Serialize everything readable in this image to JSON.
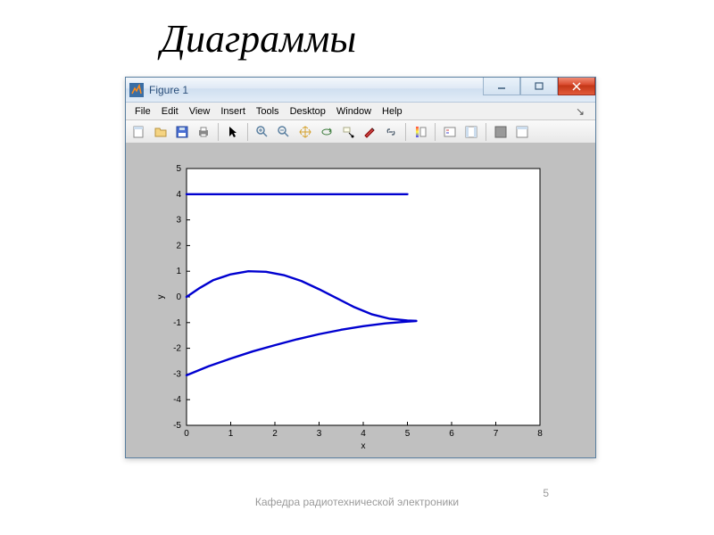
{
  "slide": {
    "title": "Диаграммы",
    "footer": "Кафедра радиотехнической электроники",
    "page_number": "5"
  },
  "window": {
    "title": "Figure 1",
    "menu": [
      "File",
      "Edit",
      "View",
      "Insert",
      "Tools",
      "Desktop",
      "Window",
      "Help"
    ],
    "toolbar_icons": [
      "new-figure",
      "open",
      "save",
      "print",
      "sep",
      "pointer",
      "sep",
      "zoom-in",
      "zoom-out",
      "pan",
      "rotate3d",
      "data-cursor",
      "brush",
      "link",
      "sep",
      "colorbar",
      "sep",
      "legend",
      "insert-colorbar",
      "sep",
      "hide-tools",
      "dock"
    ]
  },
  "chart": {
    "type": "line",
    "background_color": "#ffffff",
    "figure_background": "#c0c0c0",
    "line_color": "#0000d0",
    "line_width": 2.4,
    "xlabel": "x",
    "ylabel": "y",
    "label_fontsize": 10,
    "xlim": [
      0,
      8
    ],
    "ylim": [
      -5,
      5
    ],
    "xtick_step": 1,
    "ytick_step": 1,
    "lines": [
      {
        "name": "top-horizontal",
        "points": [
          [
            0.0,
            4.0
          ],
          [
            5.0,
            4.0
          ]
        ]
      },
      {
        "name": "upper-curve",
        "points": [
          [
            0.0,
            0.0
          ],
          [
            0.3,
            0.35
          ],
          [
            0.6,
            0.65
          ],
          [
            1.0,
            0.88
          ],
          [
            1.4,
            1.0
          ],
          [
            1.8,
            0.98
          ],
          [
            2.2,
            0.85
          ],
          [
            2.6,
            0.62
          ],
          [
            3.0,
            0.3
          ],
          [
            3.4,
            -0.05
          ],
          [
            3.8,
            -0.4
          ],
          [
            4.2,
            -0.68
          ],
          [
            4.6,
            -0.85
          ],
          [
            5.0,
            -0.92
          ],
          [
            5.2,
            -0.93
          ]
        ]
      },
      {
        "name": "lower-curve",
        "points": [
          [
            0.0,
            -3.05
          ],
          [
            0.5,
            -2.7
          ],
          [
            1.0,
            -2.4
          ],
          [
            1.5,
            -2.12
          ],
          [
            2.0,
            -1.88
          ],
          [
            2.5,
            -1.65
          ],
          [
            3.0,
            -1.45
          ],
          [
            3.5,
            -1.28
          ],
          [
            4.0,
            -1.14
          ],
          [
            4.5,
            -1.03
          ],
          [
            5.0,
            -0.96
          ],
          [
            5.2,
            -0.94
          ]
        ]
      }
    ]
  }
}
